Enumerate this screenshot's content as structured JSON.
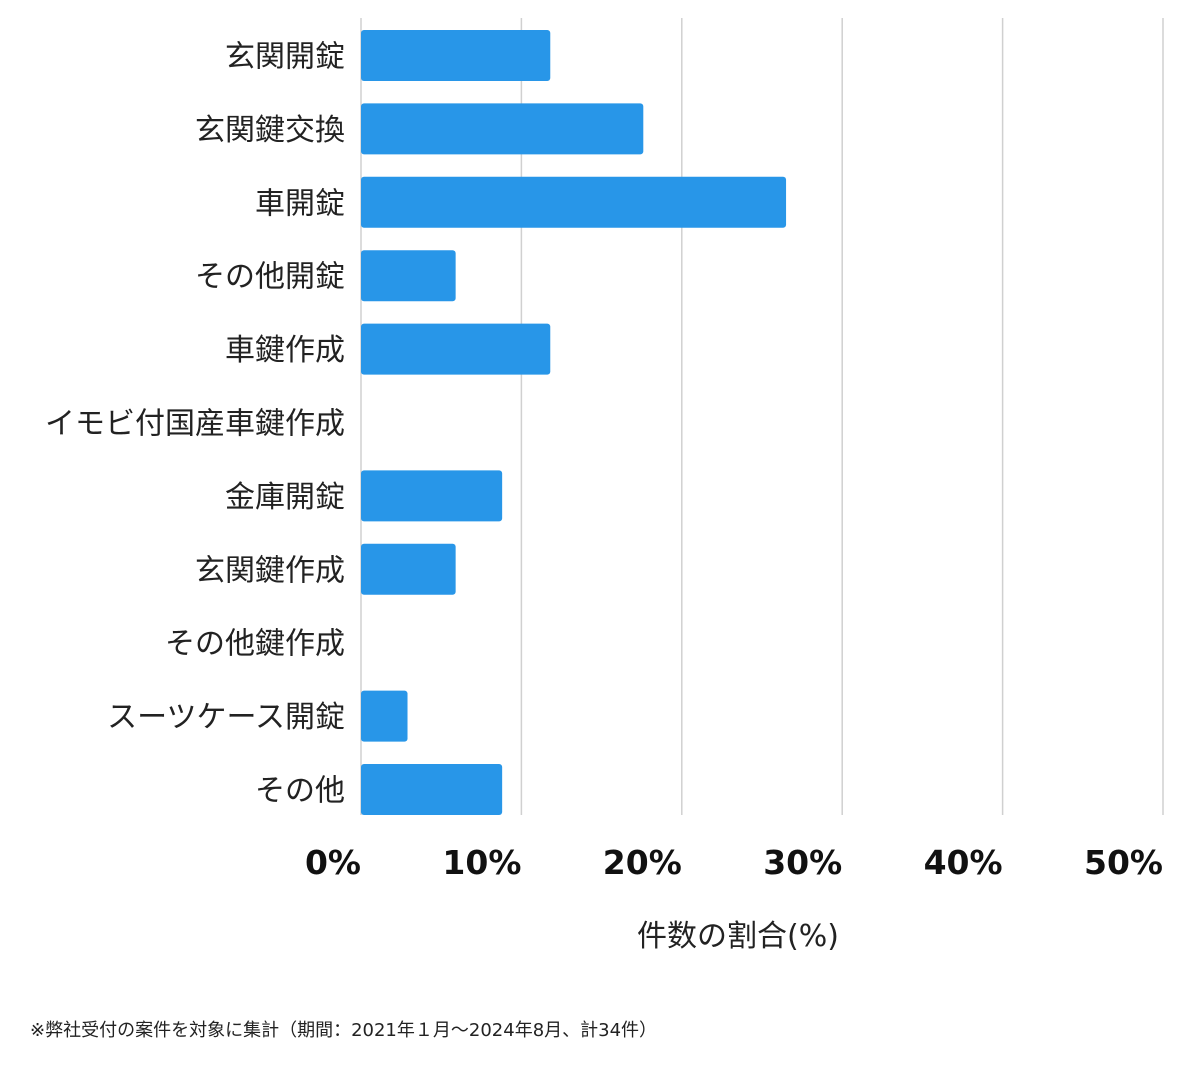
{
  "chart_data": {
    "type": "bar",
    "orientation": "horizontal",
    "categories": [
      "玄関開錠",
      "玄関鍵交換",
      "車開錠",
      "その他開錠",
      "車鍵作成",
      "イモビ付国産車鍵作成",
      "金庫開錠",
      "玄関鍵作成",
      "その他鍵作成",
      "スーツケース開錠",
      "その他"
    ],
    "values": [
      11.8,
      17.6,
      26.5,
      5.9,
      11.8,
      0,
      8.8,
      5.9,
      0,
      2.9,
      8.8
    ],
    "xlim": [
      0,
      50
    ],
    "ticks": [
      0,
      10,
      20,
      30,
      40,
      50
    ],
    "tick_labels": [
      "0%",
      "10%",
      "20%",
      "30%",
      "40%",
      "50%"
    ],
    "xlabel": "件数の割合(%)",
    "grid": true,
    "bar_color": "#2896e8",
    "grid_color": "#d0d0d0"
  },
  "footnote": "※弊社受付の案件を対象に集計（期間：2021年１月〜2024年8月、計34件）"
}
